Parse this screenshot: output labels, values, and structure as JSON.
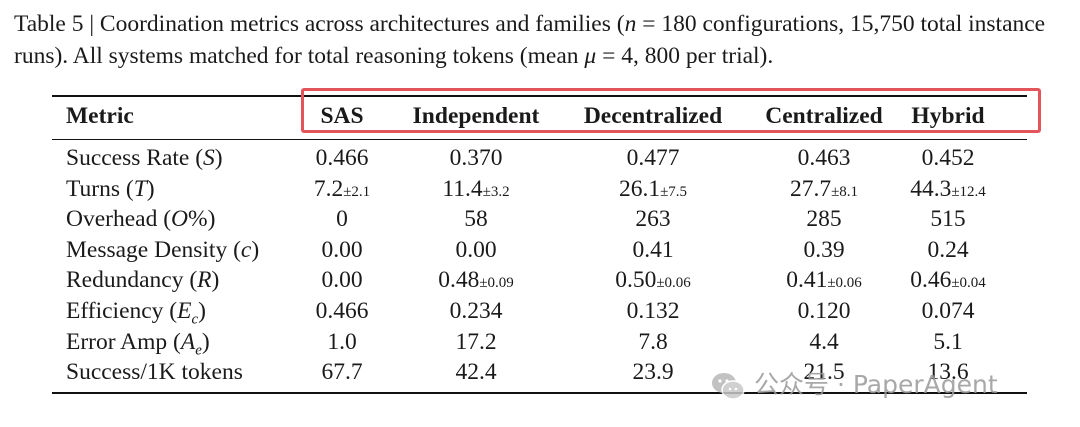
{
  "caption": {
    "part1": "Table 5 | Coordination metrics across architectures and families (",
    "n_symbol": "n",
    "part2": " = 180 configurations, 15,750 total instance runs). All systems matched for total reasoning tokens (mean ",
    "mu_symbol": "μ",
    "part3": " = 4, 800 per trial)."
  },
  "columns": [
    "Metric",
    "SAS",
    "Independent",
    "Decentralized",
    "Centralized",
    "Hybrid"
  ],
  "rows": [
    {
      "metric": "Success Rate (",
      "symbol": "S",
      "tail": ")",
      "cells": [
        {
          "v": "0.466"
        },
        {
          "v": "0.370"
        },
        {
          "v": "0.477"
        },
        {
          "v": "0.463"
        },
        {
          "v": "0.452"
        }
      ]
    },
    {
      "metric": "Turns (",
      "symbol": "T",
      "tail": ")",
      "cells": [
        {
          "v": "7.2",
          "sd": "±2.1"
        },
        {
          "v": "11.4",
          "sd": "±3.2"
        },
        {
          "v": "26.1",
          "sd": "±7.5"
        },
        {
          "v": "27.7",
          "sd": "±8.1"
        },
        {
          "v": "44.3",
          "sd": "±12.4"
        }
      ]
    },
    {
      "metric": "Overhead (",
      "symbol": "O",
      "tail": "%)",
      "cells": [
        {
          "v": "0"
        },
        {
          "v": "58"
        },
        {
          "v": "263"
        },
        {
          "v": "285"
        },
        {
          "v": "515"
        }
      ]
    },
    {
      "metric": "Message Density (",
      "symbol": "c",
      "tail": ")",
      "cells": [
        {
          "v": "0.00"
        },
        {
          "v": "0.00"
        },
        {
          "v": "0.41"
        },
        {
          "v": "0.39"
        },
        {
          "v": "0.24"
        }
      ]
    },
    {
      "metric": "Redundancy (",
      "symbol": "R",
      "tail": ")",
      "cells": [
        {
          "v": "0.00"
        },
        {
          "v": "0.48",
          "sd": "±0.09"
        },
        {
          "v": "0.50",
          "sd": "±0.06"
        },
        {
          "v": "0.41",
          "sd": "±0.06"
        },
        {
          "v": "0.46",
          "sd": "±0.04"
        }
      ]
    },
    {
      "metric": "Efficiency (",
      "symbol": "E",
      "sub": "c",
      "tail": ")",
      "cells": [
        {
          "v": "0.466"
        },
        {
          "v": "0.234"
        },
        {
          "v": "0.132"
        },
        {
          "v": "0.120"
        },
        {
          "v": "0.074"
        }
      ]
    },
    {
      "metric": "Error Amp (",
      "symbol": "A",
      "sub": "e",
      "tail": ")",
      "cells": [
        {
          "v": "1.0"
        },
        {
          "v": "17.2"
        },
        {
          "v": "7.8"
        },
        {
          "v": "4.4"
        },
        {
          "v": "5.1"
        }
      ]
    },
    {
      "metric": "Success/1K tokens",
      "symbol": "",
      "tail": "",
      "cells": [
        {
          "v": "67.7"
        },
        {
          "v": "42.4"
        },
        {
          "v": "23.9"
        },
        {
          "v": "21.5"
        },
        {
          "v": "13.6"
        }
      ]
    }
  ],
  "watermark": {
    "text": "公众号 · PaperAgent",
    "icon": "wechat-icon"
  },
  "colors": {
    "highlight": "#e4545b",
    "text": "#1a1a1a",
    "watermark": "#9a9a9a"
  }
}
